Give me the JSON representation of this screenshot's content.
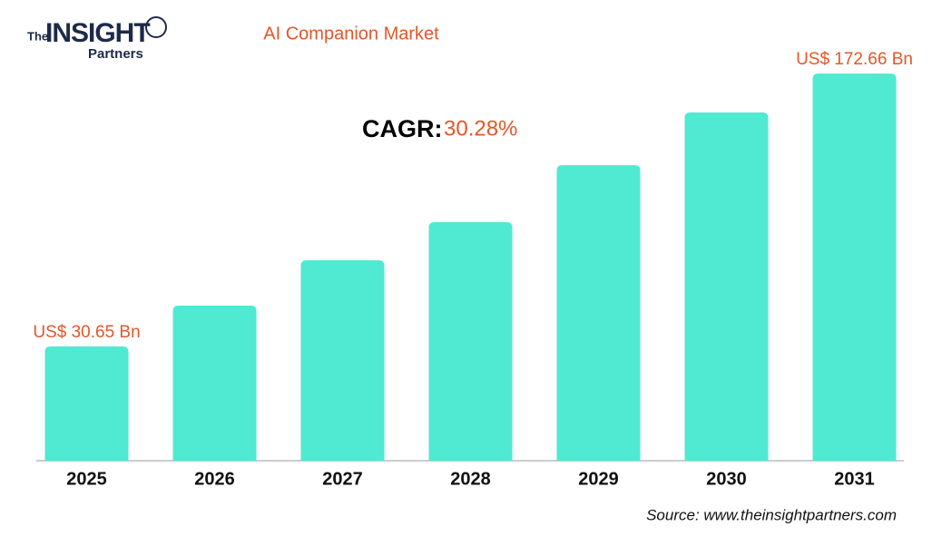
{
  "logo": {
    "the": "The",
    "insight": "INSIGHT",
    "partners": "Partners"
  },
  "chart_data": {
    "type": "bar",
    "title": "AI Companion Market",
    "cagr_label": "CAGR:",
    "cagr_value": "30.28%",
    "categories": [
      "2025",
      "2026",
      "2027",
      "2028",
      "2029",
      "2030",
      "2031"
    ],
    "values": [
      30.65,
      51.9,
      75.5,
      95.3,
      125.0,
      152.4,
      172.66
    ],
    "value_labels": [
      "US$ 30.65 Bn",
      null,
      null,
      null,
      null,
      null,
      "US$ 172.66 Bn"
    ],
    "color": "#50e9d1",
    "ylim": [
      -28.8,
      182.6
    ],
    "source": "Source: www.theinsightpartners.com"
  }
}
